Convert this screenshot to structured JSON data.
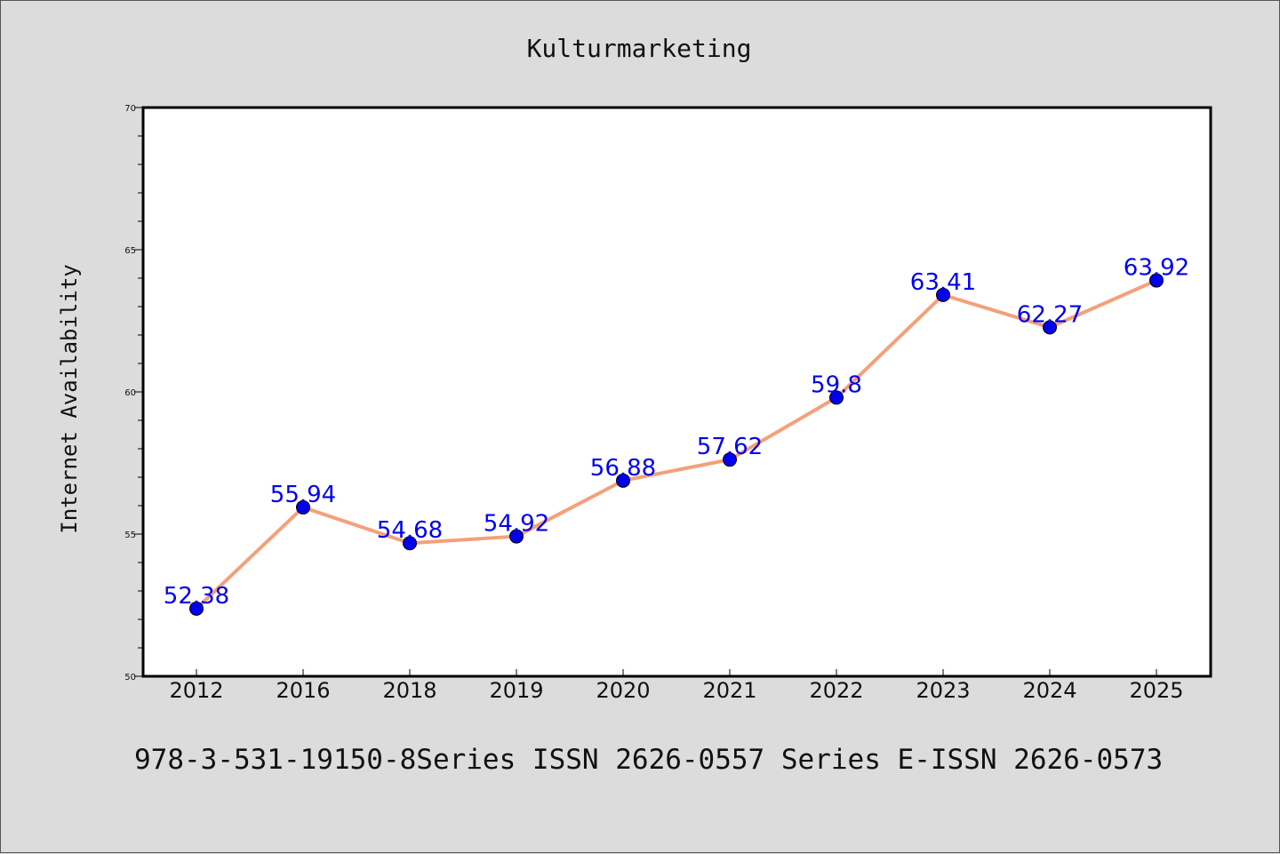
{
  "chart_data": {
    "type": "line",
    "title": "Kulturmarketing",
    "ylabel": "Internet Availability",
    "xlabel": "",
    "categories": [
      "2012",
      "2016",
      "2018",
      "2019",
      "2020",
      "2021",
      "2022",
      "2023",
      "2024",
      "2025"
    ],
    "series": [
      {
        "values": [
          52.38,
          55.94,
          54.68,
          54.92,
          56.88,
          57.62,
          59.8,
          63.41,
          62.27,
          63.92
        ],
        "labels": [
          "52.38",
          "55.94",
          "54.68",
          "54.92",
          "56.88",
          "57.62",
          "59.8",
          "63.41",
          "62.27",
          "63.92"
        ],
        "line_color": "#f4a07a",
        "marker_color": "#0000ee"
      }
    ],
    "ylim": [
      50,
      70
    ],
    "yticks": [
      "50",
      "55",
      "60",
      "65",
      "70"
    ],
    "grid": false,
    "legend": "none"
  },
  "footer": "978-3-531-19150-8Series ISSN 2626-0557 Series E-ISSN 2626-0573"
}
